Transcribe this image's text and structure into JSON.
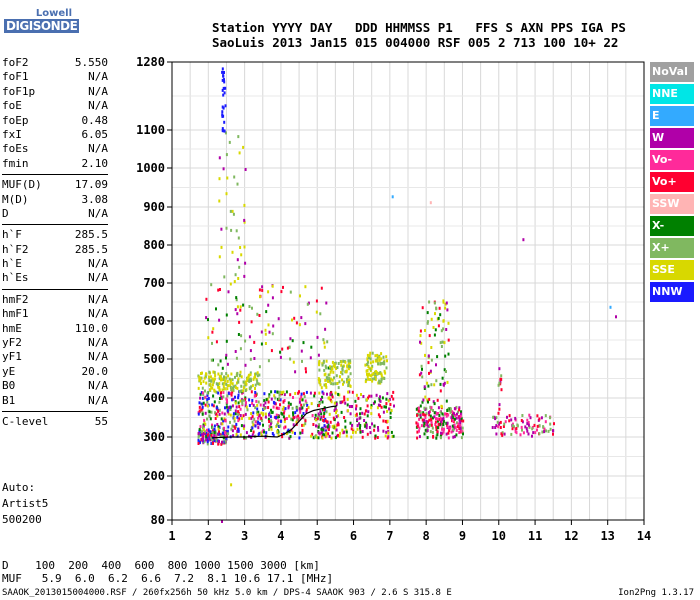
{
  "logo": {
    "line1": "Lowell",
    "line2": "DIGISONDE"
  },
  "header": {
    "line1": "Station YYYY DAY   DDD HHMMSS P1   FFS S AXN PPS IGA PS",
    "line2": "SaoLuis 2013 Jan15 015 004000 RSF 005 2 713 100 10+ 22"
  },
  "params": {
    "group1": [
      {
        "name": "foF2",
        "value": "5.550"
      },
      {
        "name": "foF1",
        "value": "N/A"
      },
      {
        "name": "foF1p",
        "value": "N/A"
      },
      {
        "name": "foE",
        "value": "N/A"
      },
      {
        "name": "foEp",
        "value": "0.48"
      },
      {
        "name": "fxI",
        "value": "6.05"
      },
      {
        "name": "foEs",
        "value": "N/A"
      },
      {
        "name": "fmin",
        "value": "2.10"
      }
    ],
    "group2": [
      {
        "name": "MUF(D)",
        "value": "17.09"
      },
      {
        "name": "M(D)",
        "value": "3.08"
      },
      {
        "name": "D",
        "value": "N/A"
      }
    ],
    "group3": [
      {
        "name": "h`F",
        "value": "285.5"
      },
      {
        "name": "h`F2",
        "value": "285.5"
      },
      {
        "name": "h`E",
        "value": "N/A"
      },
      {
        "name": "h`Es",
        "value": "N/A"
      }
    ],
    "group4": [
      {
        "name": "hmF2",
        "value": "N/A"
      },
      {
        "name": "hmF1",
        "value": "N/A"
      },
      {
        "name": "hmE",
        "value": "110.0"
      },
      {
        "name": "yF2",
        "value": "N/A"
      },
      {
        "name": "yF1",
        "value": "N/A"
      },
      {
        "name": "yE",
        "value": "20.0"
      },
      {
        "name": "B0",
        "value": "N/A"
      },
      {
        "name": "B1",
        "value": "N/A"
      }
    ],
    "group5": [
      {
        "name": "C-level",
        "value": "55"
      }
    ]
  },
  "auto": {
    "line1": "Auto:",
    "line2": "Artist5",
    "line3": "500200"
  },
  "legend": [
    {
      "label": "NoVal",
      "color": "#a0a0a0"
    },
    {
      "label": "NNE",
      "color": "#00e6e6"
    },
    {
      "label": "E",
      "color": "#33aaff"
    },
    {
      "label": "W",
      "color": "#b000a8"
    },
    {
      "label": "Vo-",
      "color": "#ff2a9a"
    },
    {
      "label": "Vo+",
      "color": "#ff0030"
    },
    {
      "label": "SSW",
      "color": "#ffb4b4"
    },
    {
      "label": "X-",
      "color": "#008000"
    },
    {
      "label": "X+",
      "color": "#80b860"
    },
    {
      "label": "SSE",
      "color": "#d8d800"
    },
    {
      "label": "NNW",
      "color": "#1a1aff"
    }
  ],
  "footer": {
    "d_row": "D    100  200  400  600  800 1000 1500 3000 [km]",
    "muf_row": "MUF   5.9  6.0  6.2  6.6  7.2  8.1 10.6 17.1 [MHz]",
    "info": "SAAOK_2013015004000.RSF / 260fx256h 50 kHz 5.0 km / DPS-4 SAAOK 903 / 2.6 S 315.8 E",
    "version": "Ion2Png 1.3.17"
  },
  "chart_data": {
    "type": "scatter",
    "x_ticks": [
      1,
      2,
      3,
      4,
      5,
      6,
      7,
      8,
      9,
      10,
      11,
      12,
      13,
      14
    ],
    "y_ticks": [
      80,
      200,
      300,
      400,
      500,
      600,
      700,
      800,
      900,
      1000,
      1100,
      1280
    ],
    "xlim": [
      1,
      14
    ],
    "ylim": [
      80,
      1280
    ],
    "grid": true,
    "legend_position": "right",
    "trace": {
      "color": "#000000",
      "points": [
        [
          2.1,
          298
        ],
        [
          2.6,
          300
        ],
        [
          3.0,
          300
        ],
        [
          3.5,
          302
        ],
        [
          3.9,
          300
        ],
        [
          4.1,
          308
        ],
        [
          4.3,
          320
        ],
        [
          4.5,
          340
        ],
        [
          4.7,
          360
        ],
        [
          4.9,
          368
        ],
        [
          5.1,
          372
        ],
        [
          5.4,
          378
        ],
        [
          5.55,
          380
        ]
      ]
    },
    "clusters": [
      {
        "x": [
          1.7,
          2.5
        ],
        "y": [
          285,
          320
        ],
        "n": 140,
        "colors": [
          "#1a1aff",
          "#b000a8",
          "#ff0030",
          "#80b860"
        ]
      },
      {
        "x": [
          1.7,
          5.3
        ],
        "y": [
          300,
          420
        ],
        "n": 520,
        "colors": [
          "#b000a8",
          "#ff0030",
          "#80b860",
          "#d8d800",
          "#008000",
          "#ff2a9a",
          "#1a1aff"
        ]
      },
      {
        "x": [
          1.7,
          3.4
        ],
        "y": [
          420,
          470
        ],
        "n": 160,
        "colors": [
          "#d8d800",
          "#80b860"
        ]
      },
      {
        "x": [
          1.9,
          5.3
        ],
        "y": [
          470,
          700
        ],
        "n": 120,
        "colors": [
          "#b000a8",
          "#ff0030",
          "#d8d800",
          "#008000",
          "#80b860"
        ]
      },
      {
        "x": [
          2.2,
          3.0
        ],
        "y": [
          700,
          1100
        ],
        "n": 40,
        "colors": [
          "#d8d800",
          "#80b860",
          "#b000a8"
        ]
      },
      {
        "x": [
          2.35,
          2.45
        ],
        "y": [
          1100,
          1280
        ],
        "n": 25,
        "colors": [
          "#1a1aff"
        ]
      },
      {
        "x": [
          5.0,
          5.9
        ],
        "y": [
          430,
          500
        ],
        "n": 110,
        "colors": [
          "#d8d800",
          "#80b860"
        ]
      },
      {
        "x": [
          5.0,
          6.0
        ],
        "y": [
          300,
          420
        ],
        "n": 110,
        "colors": [
          "#ff0030",
          "#b000a8",
          "#008000",
          "#d8d800"
        ]
      },
      {
        "x": [
          6.3,
          6.9
        ],
        "y": [
          440,
          520
        ],
        "n": 90,
        "colors": [
          "#d8d800",
          "#80b860"
        ]
      },
      {
        "x": [
          6.0,
          7.1
        ],
        "y": [
          300,
          420
        ],
        "n": 110,
        "colors": [
          "#ff0030",
          "#b000a8",
          "#008000",
          "#d8d800"
        ]
      },
      {
        "x": [
          7.7,
          9.0
        ],
        "y": [
          300,
          380
        ],
        "n": 220,
        "colors": [
          "#ff0030",
          "#b000a8",
          "#ff2a9a",
          "#008000",
          "#80b860"
        ]
      },
      {
        "x": [
          7.8,
          8.6
        ],
        "y": [
          380,
          660
        ],
        "n": 90,
        "colors": [
          "#b000a8",
          "#d8d800",
          "#80b860",
          "#ff0030",
          "#008000"
        ]
      },
      {
        "x": [
          9.8,
          11.5
        ],
        "y": [
          305,
          360
        ],
        "n": 90,
        "colors": [
          "#ff0030",
          "#ff2a9a",
          "#b000a8",
          "#80b860"
        ]
      },
      {
        "x": [
          9.95,
          10.05
        ],
        "y": [
          360,
          480
        ],
        "n": 12,
        "colors": [
          "#ff0030",
          "#b000a8",
          "#80b860"
        ]
      }
    ],
    "outliers": [
      {
        "x": 7.05,
        "y": 930,
        "color": "#33aaff"
      },
      {
        "x": 8.1,
        "y": 915,
        "color": "#ffb4b4"
      },
      {
        "x": 10.65,
        "y": 818,
        "color": "#b000a8"
      },
      {
        "x": 13.05,
        "y": 640,
        "color": "#33aaff"
      },
      {
        "x": 13.2,
        "y": 615,
        "color": "#b000a8"
      },
      {
        "x": 2.6,
        "y": 180,
        "color": "#d8d800"
      },
      {
        "x": 2.35,
        "y": 80,
        "color": "#b000a8"
      },
      {
        "x": 3.0,
        "y": 1000,
        "color": "#b000a8"
      }
    ]
  }
}
